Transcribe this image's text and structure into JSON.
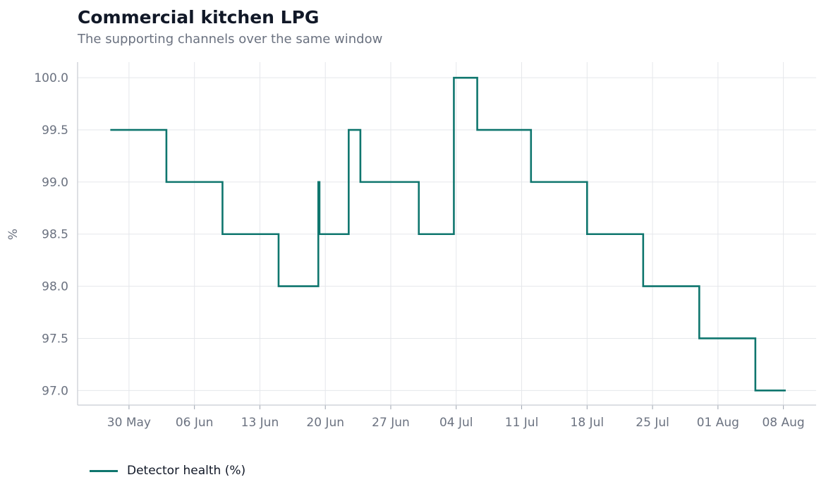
{
  "chart_data": {
    "type": "line",
    "step": true,
    "title": "Commercial kitchen LPG",
    "subtitle": "The supporting channels over the same window",
    "ylabel": "%",
    "xlabel": "",
    "ylim": [
      96.86,
      100.15
    ],
    "y_ticks": [
      "97.0",
      "97.5",
      "98.0",
      "98.5",
      "99.0",
      "99.5",
      "100.0"
    ],
    "y_tick_values": [
      97.0,
      97.5,
      98.0,
      98.5,
      99.0,
      99.5,
      100.0
    ],
    "x_ticks": [
      "30 May",
      "06 Jun",
      "13 Jun",
      "20 Jun",
      "27 Jun",
      "04 Jul",
      "11 Jul",
      "18 Jul",
      "25 Jul",
      "01 Aug",
      "08 Aug"
    ],
    "x_tick_dates": [
      "2024-05-30",
      "2024-06-06",
      "2024-06-13",
      "2024-06-20",
      "2024-06-27",
      "2024-07-04",
      "2024-07-11",
      "2024-07-18",
      "2024-07-25",
      "2024-08-01",
      "2024-08-08"
    ],
    "xlim": [
      "2024-05-24T12:00",
      "2024-08-11T12:00"
    ],
    "grid": true,
    "legend_position": "bottom-left",
    "series": [
      {
        "name": "Detector health (%)",
        "color": "#0f766e",
        "x": [
          "2024-05-28",
          "2024-06-03",
          "2024-06-09",
          "2024-06-15",
          "2024-06-19T06:00",
          "2024-06-19T09:00",
          "2024-06-22T12:00",
          "2024-06-23T18:00",
          "2024-06-30",
          "2024-07-03T18:00",
          "2024-07-06T06:00",
          "2024-07-12",
          "2024-07-18",
          "2024-07-24",
          "2024-07-30",
          "2024-08-05",
          "2024-08-08T06:00"
        ],
        "values": [
          99.5,
          99.0,
          98.5,
          98.0,
          99.0,
          98.5,
          99.5,
          99.0,
          98.5,
          100.0,
          99.5,
          99.0,
          98.5,
          98.0,
          97.5,
          97.0,
          97.0
        ]
      }
    ]
  }
}
